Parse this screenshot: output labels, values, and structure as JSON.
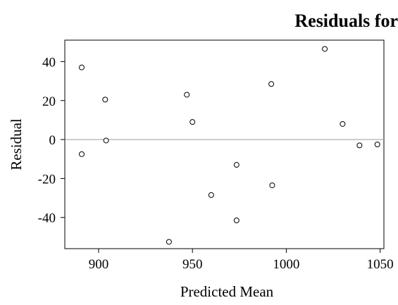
{
  "chart_data": {
    "type": "scatter",
    "title": "Residuals for",
    "xlabel": "Predicted Mean",
    "ylabel": "Residual",
    "xlim": [
      882,
      1052
    ],
    "ylim": [
      -56,
      51
    ],
    "x_ticks": [
      900,
      950,
      1000,
      1050
    ],
    "y_ticks": [
      40,
      20,
      0,
      -20,
      -40
    ],
    "x_tick_labels": [
      "900",
      "950",
      "1000",
      "1050"
    ],
    "y_tick_labels": [
      "40",
      "20",
      "0",
      "-20",
      "-40"
    ],
    "reference_line_y": 0,
    "grid": false,
    "points": [
      {
        "x": 891,
        "y": 37
      },
      {
        "x": 891,
        "y": -7.5
      },
      {
        "x": 903.5,
        "y": 20.5
      },
      {
        "x": 904,
        "y": -0.5
      },
      {
        "x": 937.5,
        "y": -52.5
      },
      {
        "x": 947,
        "y": 23
      },
      {
        "x": 950,
        "y": 9
      },
      {
        "x": 960,
        "y": -28.5
      },
      {
        "x": 973.5,
        "y": -13
      },
      {
        "x": 973.5,
        "y": -41.5
      },
      {
        "x": 992,
        "y": 28.5
      },
      {
        "x": 992.5,
        "y": -23.5
      },
      {
        "x": 1020.5,
        "y": 46.5
      },
      {
        "x": 1030,
        "y": 8
      },
      {
        "x": 1039,
        "y": -3
      },
      {
        "x": 1048.5,
        "y": -2.5
      }
    ]
  }
}
